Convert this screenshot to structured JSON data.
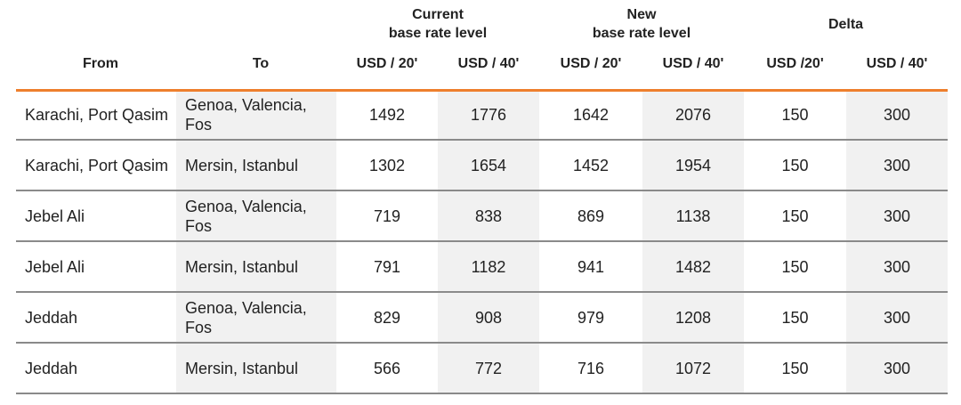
{
  "header_groups": [
    {
      "line1": "Current",
      "line2": "base rate level"
    },
    {
      "line1": "New",
      "line2": "base rate level"
    },
    {
      "line1": "Delta",
      "line2": ""
    }
  ],
  "columns": [
    "From",
    "To",
    "USD / 20'",
    "USD / 40'",
    "USD / 20'",
    "USD / 40'",
    "USD /20'",
    "USD / 40'"
  ],
  "rows": [
    [
      "Karachi, Port Qasim",
      "Genoa, Valencia, Fos",
      "1492",
      "1776",
      "1642",
      "2076",
      "150",
      "300"
    ],
    [
      "Karachi, Port Qasim",
      "Mersin, Istanbul",
      "1302",
      "1654",
      "1452",
      "1954",
      "150",
      "300"
    ],
    [
      "Jebel Ali",
      "Genoa, Valencia, Fos",
      "719",
      "838",
      "869",
      "1138",
      "150",
      "300"
    ],
    [
      "Jebel Ali",
      "Mersin, Istanbul",
      "791",
      "1182",
      "941",
      "1482",
      "150",
      "300"
    ],
    [
      "Jeddah",
      "Genoa, Valencia, Fos",
      "829",
      "908",
      "979",
      "1208",
      "150",
      "300"
    ],
    [
      "Jeddah",
      "Mersin, Istanbul",
      "566",
      "772",
      "716",
      "1072",
      "150",
      "300"
    ]
  ],
  "colors": {
    "accent": "#ee7f2d",
    "shade": "#f1f1f1",
    "rule": "#8a8a8a"
  }
}
